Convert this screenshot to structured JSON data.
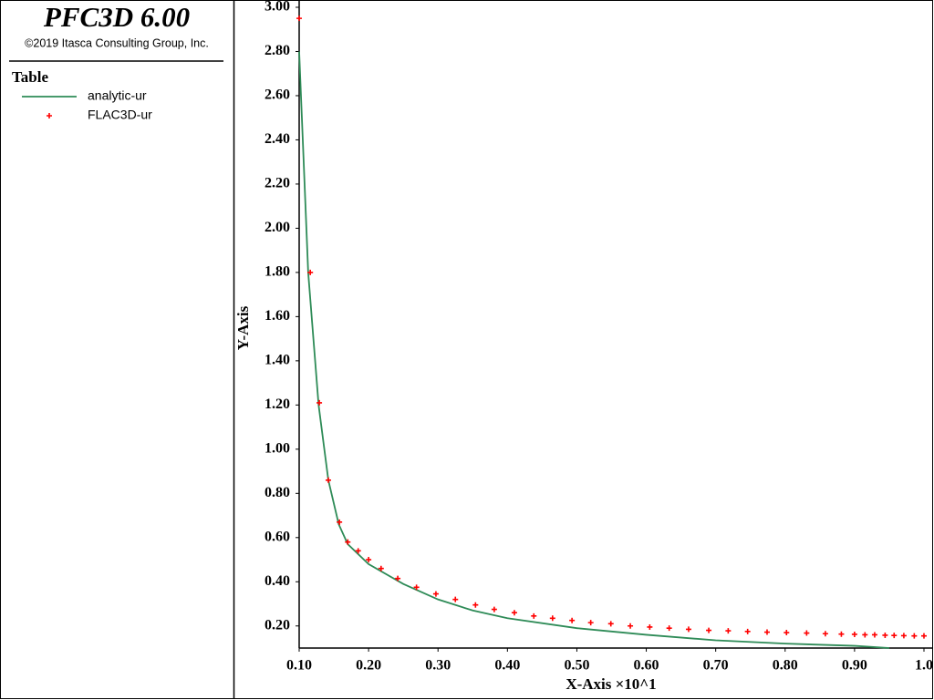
{
  "panel": {
    "title": "PFC3D 6.00",
    "copyright": "©2019 Itasca Consulting Group, Inc.",
    "legend_title": "Table"
  },
  "chart_data": {
    "type": "line",
    "x_label": "X-Axis ×10^1",
    "y_label": "Y-Axis",
    "xlim": [
      0.1,
      1.0
    ],
    "ylim": [
      0.1,
      3.0
    ],
    "xticks": [
      {
        "value": 0.1,
        "label": "0.10"
      },
      {
        "value": 0.2,
        "label": "0.20"
      },
      {
        "value": 0.3,
        "label": "0.30"
      },
      {
        "value": 0.4,
        "label": "0.40"
      },
      {
        "value": 0.5,
        "label": "0.50"
      },
      {
        "value": 0.6,
        "label": "0.60"
      },
      {
        "value": 0.7,
        "label": "0.70"
      },
      {
        "value": 0.8,
        "label": "0.80"
      },
      {
        "value": 0.9,
        "label": "0.90"
      },
      {
        "value": 1.0,
        "label": "1.0"
      }
    ],
    "yticks": [
      {
        "value": 0.2,
        "label": "0.20"
      },
      {
        "value": 0.4,
        "label": "0.40"
      },
      {
        "value": 0.6,
        "label": "0.60"
      },
      {
        "value": 0.8,
        "label": "0.80"
      },
      {
        "value": 1.0,
        "label": "1.00"
      },
      {
        "value": 1.2,
        "label": "1.20"
      },
      {
        "value": 1.4,
        "label": "1.40"
      },
      {
        "value": 1.6,
        "label": "1.60"
      },
      {
        "value": 1.8,
        "label": "1.80"
      },
      {
        "value": 2.0,
        "label": "2.00"
      },
      {
        "value": 2.2,
        "label": "2.20"
      },
      {
        "value": 2.4,
        "label": "2.40"
      },
      {
        "value": 2.6,
        "label": "2.60"
      },
      {
        "value": 2.8,
        "label": "2.80"
      },
      {
        "value": 3.0,
        "label": "3.00"
      }
    ],
    "series": [
      {
        "name": "analytic-ur",
        "color": "#2e8b57",
        "mode": "line",
        "x": [
          0.1,
          0.113,
          0.128,
          0.142,
          0.157,
          0.17,
          0.2,
          0.25,
          0.3,
          0.35,
          0.4,
          0.5,
          0.6,
          0.7,
          0.8,
          0.9,
          0.95
        ],
        "values": [
          2.8,
          1.8,
          1.2,
          0.86,
          0.66,
          0.57,
          0.48,
          0.39,
          0.32,
          0.27,
          0.235,
          0.19,
          0.16,
          0.135,
          0.12,
          0.11,
          0.1
        ]
      },
      {
        "name": "FLAC3D-ur",
        "color": "#ff0000",
        "mode": "markers",
        "x": [
          0.1,
          0.116,
          0.129,
          0.142,
          0.158,
          0.17,
          0.185,
          0.2,
          0.218,
          0.242,
          0.269,
          0.297,
          0.325,
          0.354,
          0.381,
          0.41,
          0.438,
          0.465,
          0.493,
          0.52,
          0.549,
          0.577,
          0.605,
          0.633,
          0.661,
          0.69,
          0.718,
          0.746,
          0.774,
          0.802,
          0.831,
          0.858,
          0.881,
          0.9,
          0.915,
          0.929,
          0.944,
          0.957,
          0.971,
          0.986,
          1.0
        ],
        "values": [
          2.95,
          1.8,
          1.21,
          0.86,
          0.67,
          0.58,
          0.54,
          0.5,
          0.46,
          0.415,
          0.375,
          0.345,
          0.32,
          0.295,
          0.275,
          0.26,
          0.245,
          0.235,
          0.225,
          0.215,
          0.21,
          0.2,
          0.195,
          0.19,
          0.185,
          0.18,
          0.178,
          0.175,
          0.172,
          0.17,
          0.168,
          0.165,
          0.163,
          0.162,
          0.16,
          0.16,
          0.158,
          0.157,
          0.156,
          0.155,
          0.155
        ]
      }
    ]
  }
}
